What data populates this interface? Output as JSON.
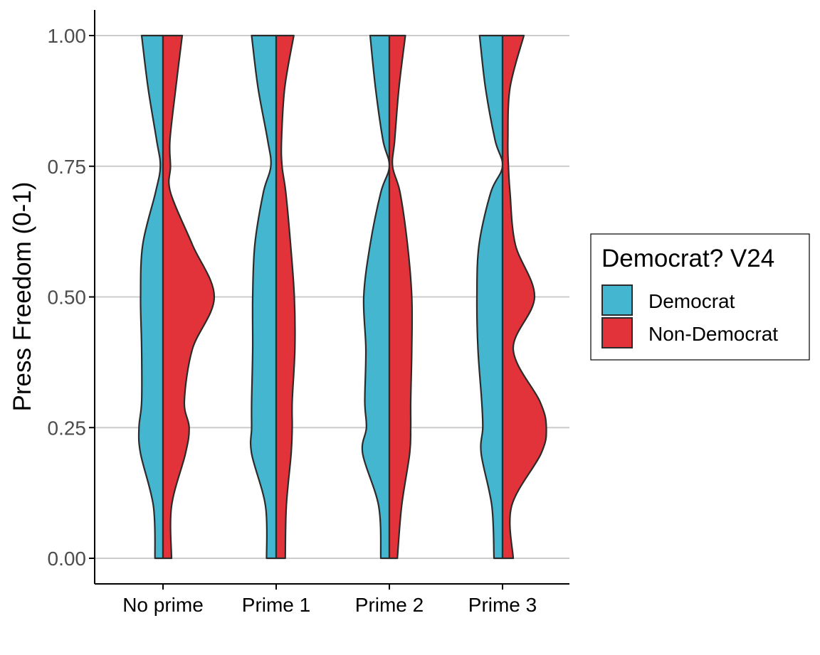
{
  "chart_data": {
    "type": "split-violin",
    "ylabel": "Press Freedom (0-1)",
    "xlabel": "",
    "ylim": [
      0,
      1
    ],
    "yticks": [
      "0.00",
      "0.25",
      "0.50",
      "0.75",
      "1.00"
    ],
    "categories": [
      "No prime",
      "Prime 1",
      "Prime 2",
      "Prime 3"
    ],
    "grid": "horizontal major",
    "legend": {
      "title": "Democrat? V24",
      "placement": "right",
      "entries": [
        "Democrat",
        "Non-Democrat"
      ]
    },
    "colors": {
      "Democrat": "#44b6cf",
      "Non-Democrat": "#e2323a",
      "outline": "#2b2b2b",
      "grid": "#cccccc"
    },
    "density_y": [
      0,
      0.1,
      0.2,
      0.25,
      0.3,
      0.4,
      0.5,
      0.6,
      0.7,
      0.75,
      0.8,
      0.9,
      1.0
    ],
    "series": [
      {
        "name": "Democrat",
        "relative_width": [
          [
            0.15,
            0.18,
            0.42,
            0.45,
            0.4,
            0.4,
            0.42,
            0.38,
            0.14,
            0.05,
            0.12,
            0.28,
            0.4
          ],
          [
            0.18,
            0.2,
            0.46,
            0.46,
            0.46,
            0.44,
            0.44,
            0.4,
            0.24,
            0.1,
            0.16,
            0.34,
            0.46
          ],
          [
            0.16,
            0.2,
            0.5,
            0.43,
            0.46,
            0.44,
            0.48,
            0.36,
            0.16,
            0.0,
            0.12,
            0.26,
            0.36
          ],
          [
            0.16,
            0.2,
            0.4,
            0.37,
            0.39,
            0.46,
            0.48,
            0.44,
            0.22,
            0.0,
            0.14,
            0.32,
            0.43
          ]
        ]
      },
      {
        "name": "Non-Democrat",
        "relative_width": [
          [
            0.16,
            0.16,
            0.42,
            0.49,
            0.4,
            0.55,
            0.96,
            0.55,
            0.14,
            0.14,
            0.13,
            0.24,
            0.36
          ],
          [
            0.17,
            0.19,
            0.28,
            0.3,
            0.3,
            0.35,
            0.34,
            0.27,
            0.18,
            0.11,
            0.1,
            0.16,
            0.33
          ],
          [
            0.15,
            0.23,
            0.38,
            0.4,
            0.4,
            0.42,
            0.42,
            0.34,
            0.2,
            0.06,
            0.1,
            0.18,
            0.3
          ],
          [
            0.2,
            0.17,
            0.72,
            0.82,
            0.7,
            0.2,
            0.6,
            0.24,
            0.14,
            0.11,
            0.1,
            0.14,
            0.4
          ]
        ]
      }
    ]
  }
}
